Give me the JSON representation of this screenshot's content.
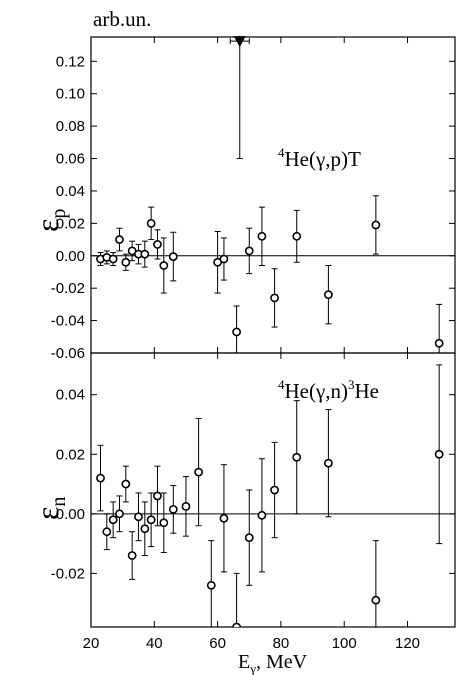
{
  "chart_data": [
    {
      "type": "scatter",
      "panel": "upper",
      "unit_label": "arb.un.",
      "ylabel_main": "ε",
      "ylabel_sub": "p",
      "annotation": {
        "sup": "4",
        "text": "He(γ,p)T"
      },
      "ylim": [
        -0.06,
        0.135
      ],
      "yticks": [
        -0.06,
        -0.04,
        -0.02,
        0.0,
        0.02,
        0.04,
        0.06,
        0.08,
        0.1,
        0.12
      ],
      "ytick_labels": [
        "-0.06",
        "-0.04",
        "-0.02",
        "0.00",
        "0.02",
        "0.04",
        "0.06",
        "0.08",
        "0.10",
        "0.12"
      ],
      "zero_line": true,
      "points": [
        {
          "x": 23,
          "y": -0.002,
          "err": 0.004
        },
        {
          "x": 25,
          "y": -0.001,
          "err": 0.004
        },
        {
          "x": 27,
          "y": -0.002,
          "err": 0.004
        },
        {
          "x": 29,
          "y": 0.01,
          "err": 0.007
        },
        {
          "x": 31,
          "y": -0.004,
          "err": 0.005
        },
        {
          "x": 33,
          "y": 0.003,
          "err": 0.006
        },
        {
          "x": 35,
          "y": 0.001,
          "err": 0.006
        },
        {
          "x": 37,
          "y": 0.001,
          "err": 0.008
        },
        {
          "x": 39,
          "y": 0.02,
          "err": 0.01
        },
        {
          "x": 41,
          "y": 0.007,
          "err": 0.009
        },
        {
          "x": 43,
          "y": -0.006,
          "err": 0.017
        },
        {
          "x": 46,
          "y": -0.0005,
          "err": 0.015
        },
        {
          "x": 60,
          "y": -0.004,
          "err": 0.019
        },
        {
          "x": 62,
          "y": -0.002,
          "err": 0.013
        },
        {
          "x": 66,
          "y": -0.047,
          "err": 0.016
        },
        {
          "x": 70,
          "y": 0.003,
          "err": 0.014
        },
        {
          "x": 74,
          "y": 0.012,
          "err": 0.018
        },
        {
          "x": 78,
          "y": -0.026,
          "err": 0.018
        },
        {
          "x": 85,
          "y": 0.012,
          "err": 0.016
        },
        {
          "x": 95,
          "y": -0.024,
          "err": 0.018
        },
        {
          "x": 110,
          "y": 0.019,
          "err": 0.018
        },
        {
          "x": 130,
          "y": -0.054,
          "err": 0.024
        }
      ],
      "special_point": {
        "x": 67,
        "y": 0.13,
        "yerr_low": 0.07,
        "xerr": 3,
        "marker": "filled-down-triangle"
      }
    },
    {
      "type": "scatter",
      "panel": "lower",
      "ylabel_main": "ε",
      "ylabel_sub": "n",
      "annotation": {
        "sup": "4",
        "text": "He(γ,n)",
        "sup2": "3",
        "text2": "He"
      },
      "ylim": [
        -0.038,
        0.054
      ],
      "yticks": [
        -0.02,
        0.0,
        0.02,
        0.04
      ],
      "ytick_labels": [
        "-0.02",
        "0.00",
        "0.02",
        "0.04"
      ],
      "zero_line": true,
      "points": [
        {
          "x": 23,
          "y": 0.012,
          "err": 0.011
        },
        {
          "x": 25,
          "y": -0.006,
          "err": 0.006
        },
        {
          "x": 27,
          "y": -0.002,
          "err": 0.006
        },
        {
          "x": 29,
          "y": 0.0,
          "err": 0.006
        },
        {
          "x": 31,
          "y": 0.01,
          "err": 0.006
        },
        {
          "x": 33,
          "y": -0.014,
          "err": 0.008
        },
        {
          "x": 35,
          "y": -0.001,
          "err": 0.008
        },
        {
          "x": 37,
          "y": -0.005,
          "err": 0.009
        },
        {
          "x": 39,
          "y": -0.002,
          "err": 0.009
        },
        {
          "x": 41,
          "y": 0.006,
          "err": 0.01
        },
        {
          "x": 43,
          "y": -0.003,
          "err": 0.01
        },
        {
          "x": 46,
          "y": 0.0015,
          "err": 0.008
        },
        {
          "x": 50,
          "y": 0.0025,
          "err": 0.01
        },
        {
          "x": 54,
          "y": 0.014,
          "err": 0.018
        },
        {
          "x": 58,
          "y": -0.024,
          "err": 0.015
        },
        {
          "x": 62,
          "y": -0.0015,
          "err": 0.018
        },
        {
          "x": 66,
          "y": -0.038,
          "err": 0.018
        },
        {
          "x": 70,
          "y": -0.008,
          "err": 0.016
        },
        {
          "x": 74,
          "y": -0.0005,
          "err": 0.019
        },
        {
          "x": 78,
          "y": 0.008,
          "err": 0.016
        },
        {
          "x": 85,
          "y": 0.019,
          "err": 0.019
        },
        {
          "x": 95,
          "y": 0.017,
          "err": 0.018
        },
        {
          "x": 110,
          "y": -0.029,
          "err": 0.02
        },
        {
          "x": 130,
          "y": 0.02,
          "err": 0.03
        }
      ]
    }
  ],
  "x_axis": {
    "xlim": [
      20,
      135
    ],
    "xticks": [
      20,
      40,
      60,
      80,
      100,
      120
    ],
    "xtick_labels": [
      "20",
      "40",
      "60",
      "80",
      "100",
      "120"
    ],
    "label_main": "E",
    "label_sub": "γ",
    "label_unit": ", MeV"
  }
}
